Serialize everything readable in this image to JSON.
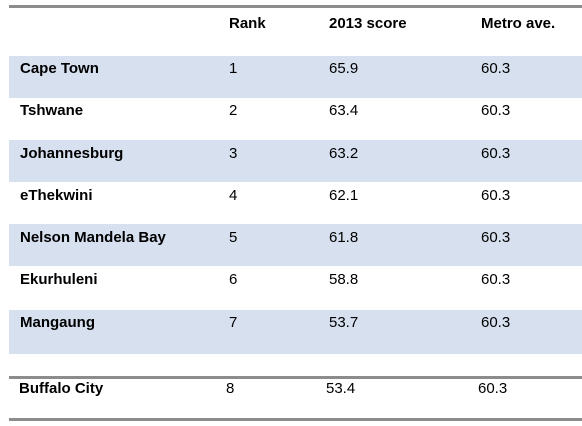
{
  "table": {
    "columns": [
      "",
      "Rank",
      "2013 score",
      "Metro ave."
    ],
    "rows": [
      {
        "metro": "Cape Town",
        "rank": "1",
        "score": "65.9",
        "metro_ave": "60.3"
      },
      {
        "metro": "Tshwane",
        "rank": "2",
        "score": "63.4",
        "metro_ave": "60.3"
      },
      {
        "metro": "Johannesburg",
        "rank": "3",
        "score": "63.2",
        "metro_ave": "60.3"
      },
      {
        "metro": "eThekwini",
        "rank": "4",
        "score": "62.1",
        "metro_ave": "60.3"
      },
      {
        "metro": "Nelson Mandela Bay",
        "rank": "5",
        "score": "61.8",
        "metro_ave": "60.3"
      },
      {
        "metro": "Ekurhuleni",
        "rank": "6",
        "score": "58.8",
        "metro_ave": "60.3"
      },
      {
        "metro": "Mangaung",
        "rank": "7",
        "score": "53.7",
        "metro_ave": "60.3"
      }
    ],
    "footer_row": {
      "metro": "Buffalo City",
      "rank": "8",
      "score": "53.4",
      "metro_ave": "60.3"
    },
    "colors": {
      "shaded_row": "#d6e0ef",
      "rule": "#8c8c8c"
    }
  }
}
